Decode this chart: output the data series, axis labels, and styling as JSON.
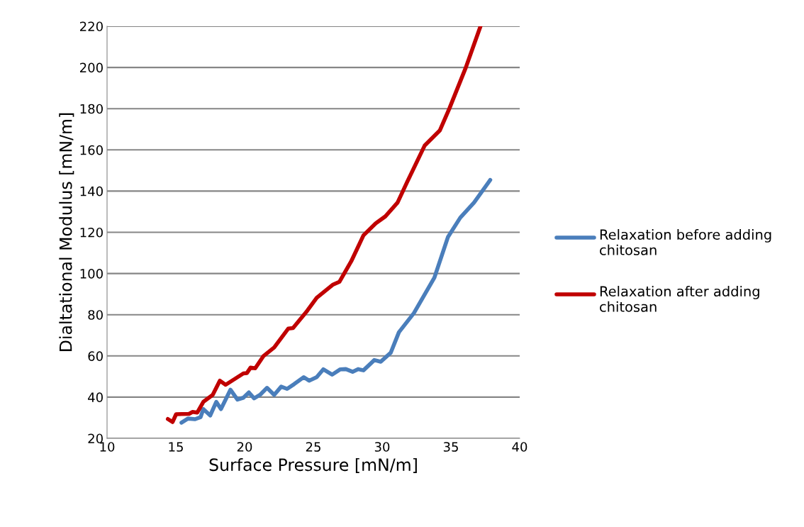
{
  "chart_data": {
    "type": "line",
    "xlabel": "Surface Pressure [mN/m]",
    "ylabel": "Dialtational Modulus [mN/m]",
    "xlim": [
      10,
      40
    ],
    "xticks": [
      10,
      15,
      20,
      25,
      30,
      35,
      40
    ],
    "ylim": [
      20,
      220
    ],
    "yticks": [
      20,
      40,
      60,
      80,
      100,
      120,
      140,
      160,
      180,
      200,
      220
    ],
    "grid": "y",
    "legend": "right",
    "marker": "none",
    "line_style": "solid",
    "series": [
      {
        "name": "Relaxation before adding chitosan",
        "color": "#4a7ebb",
        "x": [
          15.41,
          15.88,
          16.4,
          16.8,
          17.0,
          17.5,
          17.94,
          18.28,
          18.97,
          19.48,
          19.91,
          20.31,
          20.69,
          21.12,
          21.63,
          22.15,
          22.66,
          23.09,
          23.6,
          24.3,
          24.69,
          25.24,
          25.72,
          26.36,
          26.96,
          27.36,
          27.85,
          28.25,
          28.64,
          29.43,
          29.9,
          30.62,
          31.22,
          32.31,
          33.8,
          34.79,
          35.68,
          36.68,
          37.86
        ],
        "values": [
          27.6,
          29.6,
          29.3,
          30.3,
          34.2,
          31.1,
          37.7,
          34.2,
          43.6,
          38.8,
          39.7,
          42.3,
          39.4,
          41.1,
          44.5,
          41.1,
          45.1,
          44.0,
          46.3,
          49.7,
          48.0,
          49.7,
          53.5,
          50.9,
          53.5,
          53.6,
          52.3,
          53.6,
          53.0,
          58.0,
          57.2,
          61.5,
          71.5,
          80.8,
          98,
          117.8,
          127.1,
          134.4,
          145.4
        ]
      },
      {
        "name": "Relaxation after adding chitosan",
        "color": "#c00000",
        "x": [
          14.42,
          14.76,
          15.02,
          15.96,
          16.22,
          16.56,
          17.0,
          17.68,
          18.2,
          18.62,
          19.91,
          20.17,
          20.43,
          20.77,
          21.38,
          22.15,
          23.18,
          23.52,
          24.55,
          25.24,
          26.4,
          26.9,
          27.75,
          28.64,
          29.54,
          30.23,
          31.12,
          31.81,
          33.1,
          34.2,
          34.89,
          36.08,
          37.15
        ],
        "values": [
          29.4,
          27.9,
          31.7,
          31.9,
          32.8,
          32.5,
          37.7,
          41.1,
          48.0,
          46.0,
          51.5,
          51.7,
          54.3,
          54.0,
          60.0,
          64.1,
          73.3,
          73.5,
          81.9,
          88.2,
          94.5,
          96.0,
          105.9,
          118.5,
          124.4,
          127.7,
          134.4,
          144.3,
          162.2,
          169.5,
          180.1,
          199.9,
          220
        ]
      }
    ]
  }
}
